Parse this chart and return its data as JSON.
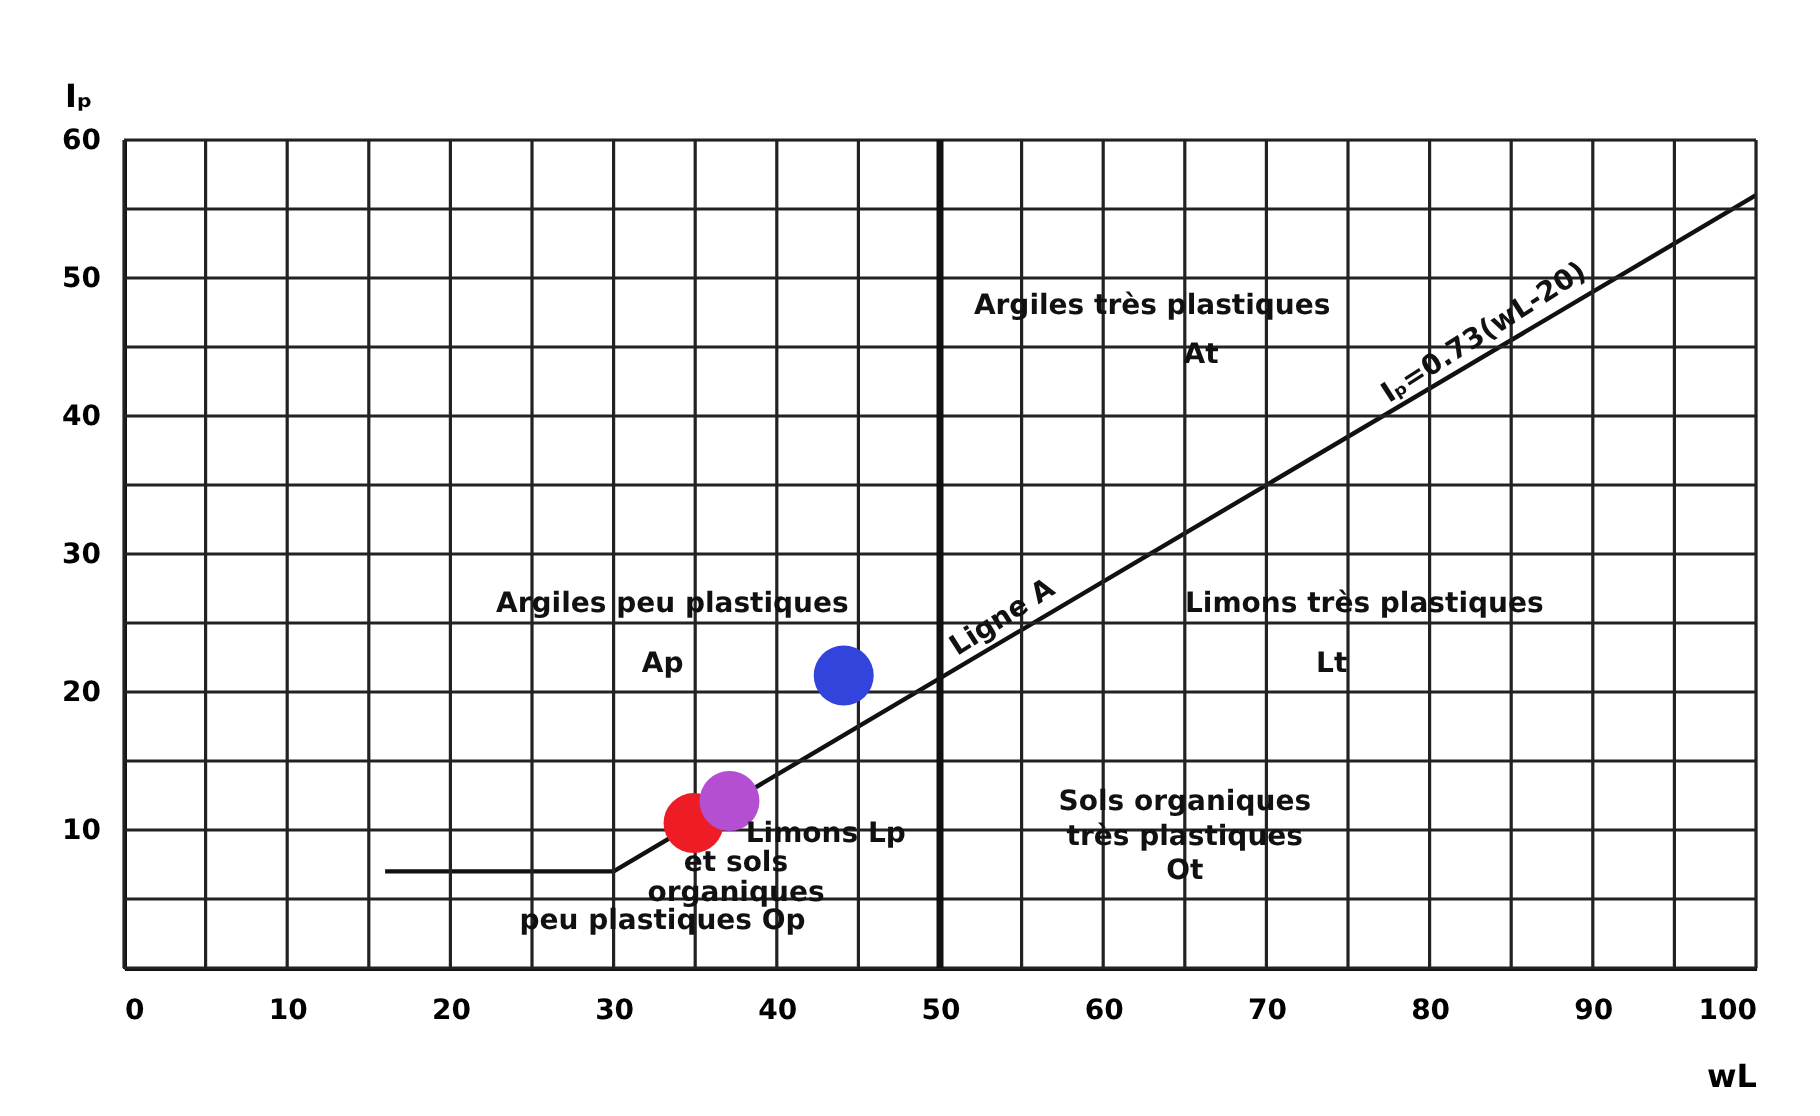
{
  "chart_data": {
    "type": "scatter",
    "xlabel": "wL",
    "ylabel": "Iₚ",
    "xlim": [
      0,
      100
    ],
    "ylim": [
      0,
      60
    ],
    "xticks": [
      0,
      {
        "value": 5,
        "label": null
      },
      10,
      {
        "value": 15,
        "label": null
      },
      20,
      {
        "value": 25,
        "label": null
      },
      30,
      {
        "value": 35,
        "label": null
      },
      40,
      {
        "value": 45,
        "label": null
      },
      50,
      {
        "value": 55,
        "label": null
      },
      60,
      {
        "value": 65,
        "label": null
      },
      70,
      {
        "value": 75,
        "label": null
      },
      80,
      {
        "value": 85,
        "label": null
      },
      90,
      {
        "value": 95,
        "label": null
      },
      100
    ],
    "yticks": [
      {
        "value": 0,
        "label": null
      },
      {
        "value": 5,
        "label": null
      },
      10,
      {
        "value": 15,
        "label": null
      },
      20,
      {
        "value": 25,
        "label": null
      },
      30,
      {
        "value": 35,
        "label": null
      },
      40,
      {
        "value": 45,
        "label": null
      },
      50,
      {
        "value": 55,
        "label": null
      },
      60
    ],
    "grid": true,
    "legend": false,
    "series": [
      {
        "name": "Ligne A",
        "type": "line",
        "color": "#111111",
        "x": [
          16,
          30,
          100
        ],
        "values": [
          7,
          7,
          56
        ]
      },
      {
        "marker": "circle",
        "x": [
          34.9,
          37.1,
          44.1
        ],
        "values": [
          10.5,
          12.1,
          21.2
        ],
        "colors": [
          "#ee1c25",
          "#b44fd1",
          "#3344dd"
        ]
      }
    ],
    "ref_lines": [
      {
        "axis": "x",
        "value": 50,
        "color": "#111111"
      }
    ],
    "annotations": [
      {
        "text": "Iₚ=0.73(wL-20)",
        "x": 84,
        "y": 44.8
      },
      "Argiles très plastiques",
      "At",
      "Argiles peu plastiques",
      "Ap",
      "Limons très plastiques",
      "Lt",
      "Limons Lp",
      "et sols",
      "organiques",
      "peu plastiques Op",
      "Sols organiques",
      "très plastiques",
      "Ot"
    ]
  }
}
